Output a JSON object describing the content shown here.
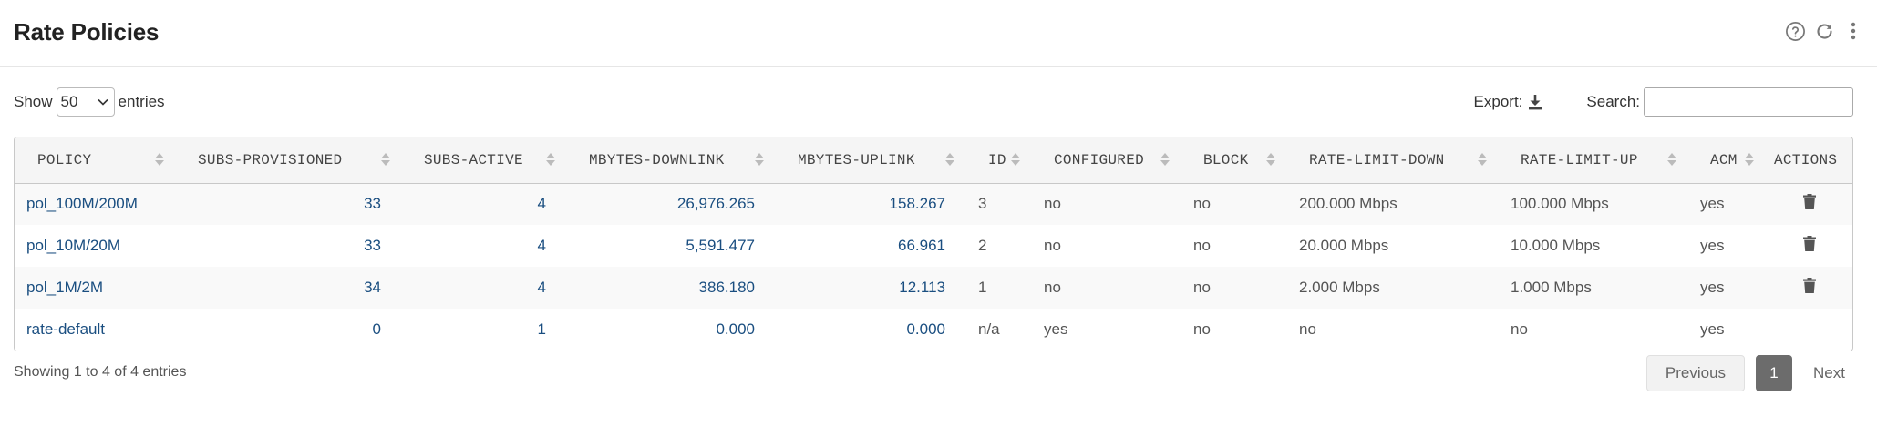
{
  "page": {
    "title": "Rate Policies"
  },
  "header_icons": [
    "help-circle-icon",
    "refresh-icon",
    "more-vertical-icon"
  ],
  "toolbar": {
    "show_label": "Show",
    "entries_value": "50",
    "entries_label": "entries",
    "export_label": "Export:",
    "search_label": "Search:",
    "search_value": ""
  },
  "table": {
    "columns": [
      "POLICY",
      "SUBS-PROVISIONED",
      "SUBS-ACTIVE",
      "MBYTES-DOWNLINK",
      "MBYTES-UPLINK",
      "ID",
      "CONFIGURED",
      "BLOCK",
      "RATE-LIMIT-DOWN",
      "RATE-LIMIT-UP",
      "ACM",
      "ACTIONS"
    ],
    "rows": [
      {
        "policy": "pol_100M/200M",
        "subs_provisioned": "33",
        "subs_active": "4",
        "mbytes_downlink": "26,976.265",
        "mbytes_uplink": "158.267",
        "id": "3",
        "configured": "no",
        "block": "no",
        "rate_limit_down": "200.000 Mbps",
        "rate_limit_up": "100.000 Mbps",
        "acm": "yes",
        "delete": true
      },
      {
        "policy": "pol_10M/20M",
        "subs_provisioned": "33",
        "subs_active": "4",
        "mbytes_downlink": "5,591.477",
        "mbytes_uplink": "66.961",
        "id": "2",
        "configured": "no",
        "block": "no",
        "rate_limit_down": "20.000 Mbps",
        "rate_limit_up": "10.000 Mbps",
        "acm": "yes",
        "delete": true
      },
      {
        "policy": "pol_1M/2M",
        "subs_provisioned": "34",
        "subs_active": "4",
        "mbytes_downlink": "386.180",
        "mbytes_uplink": "12.113",
        "id": "1",
        "configured": "no",
        "block": "no",
        "rate_limit_down": "2.000 Mbps",
        "rate_limit_up": "1.000 Mbps",
        "acm": "yes",
        "delete": true
      },
      {
        "policy": "rate-default",
        "subs_provisioned": "0",
        "subs_active": "1",
        "mbytes_downlink": "0.000",
        "mbytes_uplink": "0.000",
        "id": "n/a",
        "configured": "yes",
        "block": "no",
        "rate_limit_down": "no",
        "rate_limit_up": "no",
        "acm": "yes",
        "delete": false
      }
    ]
  },
  "footer": {
    "info": "Showing 1 to 4 of 4 entries",
    "previous_label": "Previous",
    "current_page": "1",
    "next_label": "Next"
  },
  "colors": {
    "link": "#1a4e80",
    "pagination_active": "#6c6c6c"
  }
}
